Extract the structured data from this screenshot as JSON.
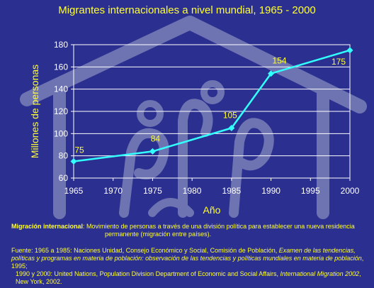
{
  "colors": {
    "background": "#2b2f8f",
    "title": "#ffff33",
    "axis_text": "#ffffff",
    "line": "#33ffff",
    "marker": "#33ffff",
    "grid": "#ffffff",
    "watermark": "#7a7fb8"
  },
  "icons": {
    "watermark": "house-silhouette-watermark"
  },
  "chart_data": {
    "type": "line",
    "title": "Migrantes internacionales a nivel mundial, 1965 - 2000",
    "xlabel": "Año",
    "ylabel": "Millones de personas",
    "xlim": [
      1965,
      2000
    ],
    "ylim": [
      60,
      180
    ],
    "x_ticks": [
      "1965",
      "1970",
      "1975",
      "1980",
      "1985",
      "1990",
      "1995",
      "2000"
    ],
    "y_ticks": [
      "60",
      "80",
      "100",
      "120",
      "140",
      "160",
      "180"
    ],
    "grid": true,
    "legend": "none",
    "series": [
      {
        "points": [
          {
            "x": 1965,
            "y": 75,
            "label": "75"
          },
          {
            "x": 1975,
            "y": 84,
            "label": "84"
          },
          {
            "x": 1985,
            "y": 105,
            "label": "105"
          },
          {
            "x": 1990,
            "y": 154,
            "label": "154"
          },
          {
            "x": 2000,
            "y": 175,
            "label": "175"
          }
        ]
      }
    ]
  },
  "definition": {
    "term": "Migración internacional",
    "text": ": Movimiento de personas a través de una división política para establecer una nueva residencia",
    "continuation": "permanente (migración entre países)."
  },
  "source": {
    "prefix": "Fuente:  1965 a 1985: Naciones Unidad, Consejo Económico y Social, Comisión de Población, ",
    "title1": "Examen de las tendencias, políticas y programas en materia de población: observación de las tendencias y políticas mundiales en materia de población",
    "suffix1": ", 1995;",
    "line2_prefix": "1990 y 2000: United Nations, Population Division Department of Economic and Social Affairs, ",
    "title2": "International Migration 2002",
    "suffix2": ", New York, 2002."
  }
}
